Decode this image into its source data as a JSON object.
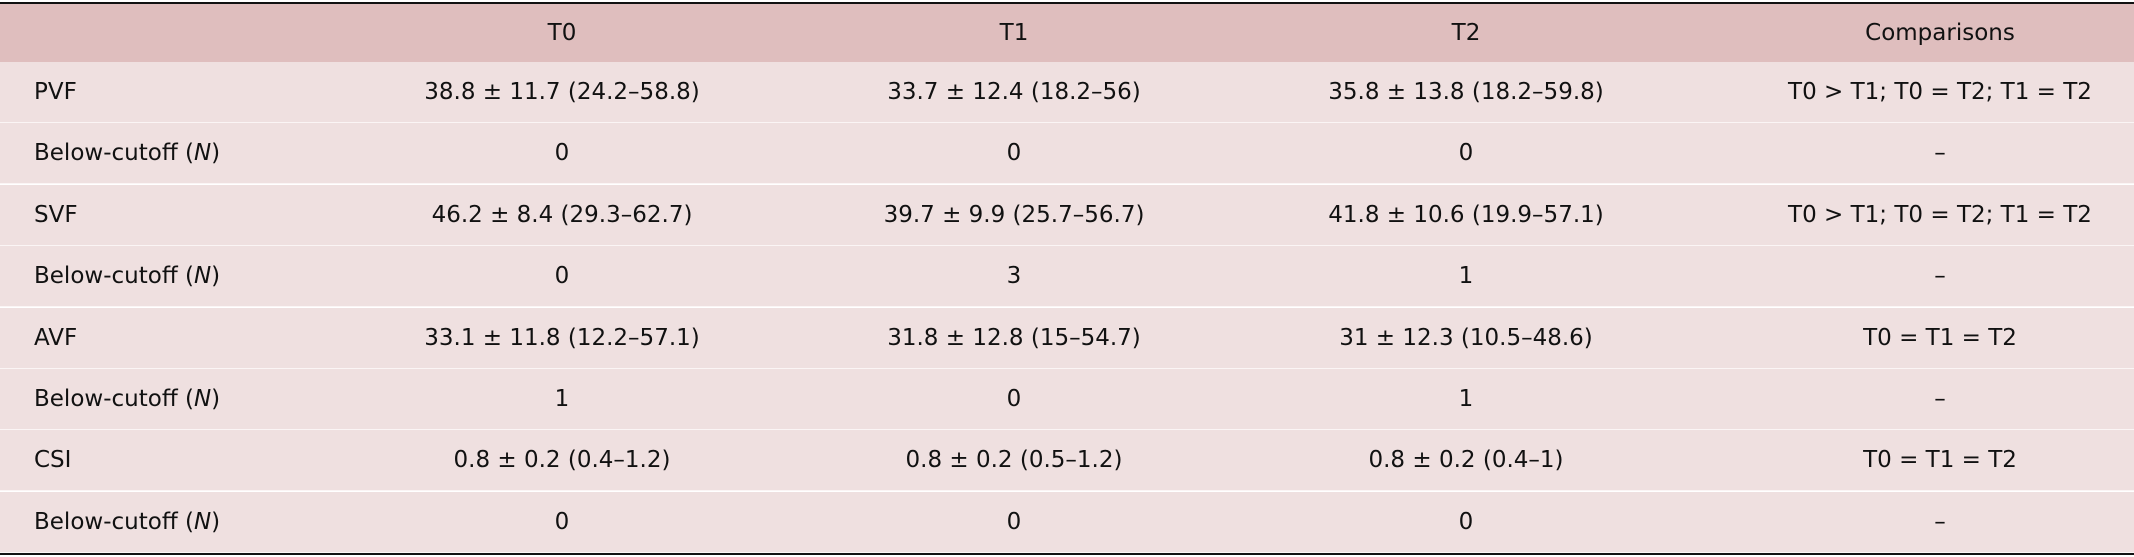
{
  "table": {
    "header": [
      "",
      "T0",
      "T1",
      "T2",
      "Comparisons"
    ],
    "rows": [
      {
        "label": [
          {
            "text": "PVF"
          }
        ],
        "cells": [
          "38.8 ± 11.7 (24.2–58.8)",
          "33.7 ± 12.4 (18.2–56)",
          "35.8 ± 13.8 (18.2–59.8)",
          "T0 > T1; T0 = T2; T1 = T2"
        ]
      },
      {
        "label": [
          {
            "text": "Below-cutoff ("
          },
          {
            "text": "N",
            "italic": true
          },
          {
            "text": ")"
          }
        ],
        "cells": [
          "0",
          "0",
          "0",
          "–"
        ]
      },
      {
        "label": [
          {
            "text": "SVF"
          }
        ],
        "cells": [
          "46.2 ± 8.4 (29.3–62.7)",
          "39.7 ± 9.9 (25.7–56.7)",
          "41.8 ± 10.6 (19.9–57.1)",
          "T0 > T1; T0 = T2; T1 = T2"
        ]
      },
      {
        "label": [
          {
            "text": "Below-cutoff ("
          },
          {
            "text": "N",
            "italic": true
          },
          {
            "text": ")"
          }
        ],
        "cells": [
          "0",
          "3",
          "1",
          "–"
        ]
      },
      {
        "label": [
          {
            "text": "AVF"
          }
        ],
        "cells": [
          "33.1 ± 11.8 (12.2–57.1)",
          "31.8 ± 12.8 (15–54.7)",
          "31 ± 12.3 (10.5–48.6)",
          "T0 = T1 = T2"
        ]
      },
      {
        "label": [
          {
            "text": "Below-cutoff ("
          },
          {
            "text": "N",
            "italic": true
          },
          {
            "text": ")"
          }
        ],
        "cells": [
          "1",
          "0",
          "1",
          "–"
        ]
      },
      {
        "label": [
          {
            "text": "CSI"
          }
        ],
        "cells": [
          "0.8 ± 0.2 (0.4–1.2)",
          "0.8 ± 0.2 (0.5–1.2)",
          "0.8 ± 0.2 (0.4–1)",
          "T0 = T1 = T2"
        ]
      },
      {
        "label": [
          {
            "text": "Below-cutoff ("
          },
          {
            "text": "N",
            "italic": true
          },
          {
            "text": ")"
          }
        ],
        "cells": [
          "0",
          "0",
          "0",
          "–"
        ]
      }
    ]
  }
}
